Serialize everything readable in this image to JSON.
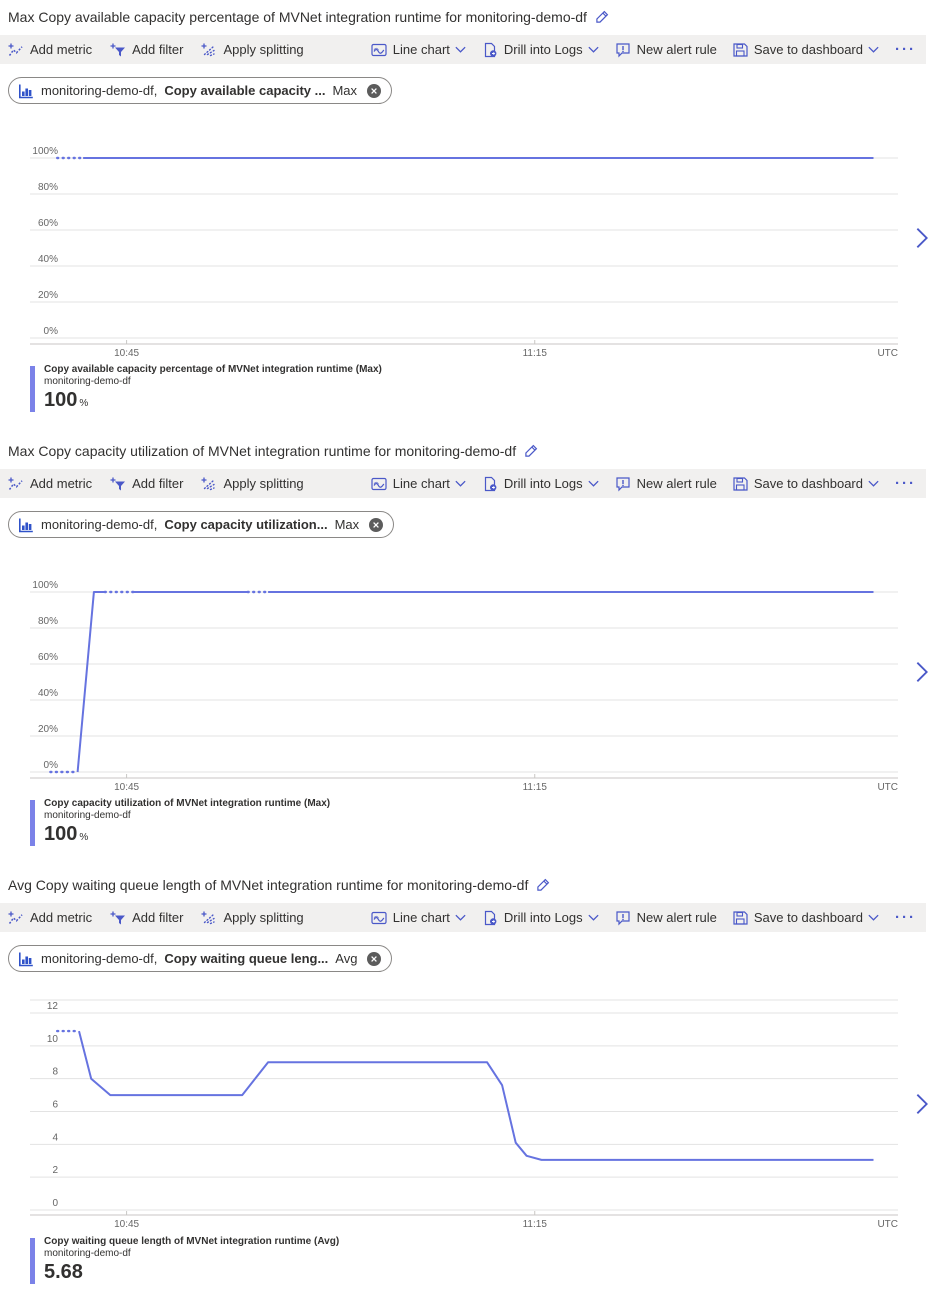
{
  "colors": {
    "accent": "#4a58c8",
    "line": "#6673e0",
    "legend_bar": "#7b82e8",
    "toolbar_bg": "#f1f0ef",
    "grid": "#e3e3e3",
    "axis": "#c8c6c4",
    "text": "#323130",
    "muted": "#666666",
    "pill_icon": "#2f52c9",
    "close_bg": "#5c5c5c"
  },
  "icons": {
    "edit-icon": "pencil",
    "add-metric-icon": "zigzag-plus",
    "add-filter-icon": "funnel-plus",
    "apply-splitting-icon": "split-dots-plus",
    "line-chart-icon": "framed-wave",
    "drill-into-logs-icon": "document-gear",
    "new-alert-rule-icon": "speech-bubble-exclamation",
    "save-to-dashboard-icon": "floppy-disk",
    "chevron-down-icon": "∨",
    "more-icon": "···",
    "metric-chart-icon": "bar-chart",
    "remove-metric-icon": "⊗",
    "chevron-right-icon": "›"
  },
  "toolbar": {
    "add_metric": "Add metric",
    "add_filter": "Add filter",
    "apply_splitting": "Apply splitting",
    "line_chart": "Line chart",
    "drill_into_logs": "Drill into Logs",
    "new_alert_rule": "New alert rule",
    "save_to_dashboard": "Save to dashboard",
    "more": "···"
  },
  "panels": [
    {
      "title": "Max Copy available capacity percentage of MVNet integration runtime for monitoring-demo-df",
      "pill": {
        "resource": "monitoring-demo-df,",
        "metric": "Copy available capacity ...",
        "aggregation": "Max"
      },
      "legend": {
        "name": "Copy available capacity percentage of MVNet integration runtime (Max)",
        "resource": "monitoring-demo-df",
        "value": "100",
        "unit": "%"
      }
    },
    {
      "title": "Max Copy capacity utilization of MVNet integration runtime for monitoring-demo-df",
      "pill": {
        "resource": "monitoring-demo-df,",
        "metric": "Copy capacity utilization...",
        "aggregation": "Max"
      },
      "legend": {
        "name": "Copy capacity utilization of MVNet integration runtime (Max)",
        "resource": "monitoring-demo-df",
        "value": "100",
        "unit": "%"
      }
    },
    {
      "title": "Avg Copy waiting queue length of MVNet integration runtime for monitoring-demo-df",
      "pill": {
        "resource": "monitoring-demo-df,",
        "metric": "Copy waiting queue leng...",
        "aggregation": "Avg"
      },
      "legend": {
        "name": "Copy waiting queue length of MVNet integration runtime (Avg)",
        "resource": "monitoring-demo-df",
        "value": "5.68",
        "unit": ""
      }
    }
  ],
  "chart_data": [
    {
      "type": "line",
      "title": "Max Copy available capacity percentage of MVNet integration runtime for monitoring-demo-df",
      "x_domain": [
        37.9,
        101.7
      ],
      "x_unit": "minutes after 10:00 UTC",
      "xticks": [
        {
          "t": 45,
          "label": "10:45"
        },
        {
          "t": 75,
          "label": "11:15"
        }
      ],
      "x_right_label": "UTC",
      "ylim": [
        0,
        100
      ],
      "yticks": [
        0,
        20,
        40,
        60,
        80,
        100
      ],
      "y_suffix": "%",
      "grid": true,
      "legend_position": "bottom-left",
      "series": [
        {
          "name": "Copy available capacity percentage of MVNet integration runtime (Max)",
          "resource": "monitoring-demo-df",
          "aggregation": "Max",
          "color": "#6673e0",
          "points": [
            [
              39.9,
              100
            ],
            [
              99.9,
              100
            ]
          ],
          "dotted_ranges": [
            [
              39.9,
              41.8
            ]
          ]
        }
      ]
    },
    {
      "type": "line",
      "title": "Max Copy capacity utilization of MVNet integration runtime for monitoring-demo-df",
      "x_domain": [
        37.9,
        101.7
      ],
      "x_unit": "minutes after 10:00 UTC",
      "xticks": [
        {
          "t": 45,
          "label": "10:45"
        },
        {
          "t": 75,
          "label": "11:15"
        }
      ],
      "x_right_label": "UTC",
      "ylim": [
        0,
        100
      ],
      "yticks": [
        0,
        20,
        40,
        60,
        80,
        100
      ],
      "y_suffix": "%",
      "grid": true,
      "legend_position": "bottom-left",
      "series": [
        {
          "name": "Copy capacity utilization of MVNet integration runtime (Max)",
          "resource": "monitoring-demo-df",
          "aggregation": "Max",
          "color": "#6673e0",
          "points": [
            [
              39.4,
              0
            ],
            [
              41.4,
              0
            ],
            [
              42.6,
              100
            ],
            [
              99.9,
              100
            ]
          ],
          "dotted_ranges": [
            [
              39.4,
              41.4
            ],
            [
              43.4,
              45.5
            ],
            [
              53.9,
              55.4
            ]
          ]
        }
      ]
    },
    {
      "type": "line",
      "title": "Avg Copy waiting queue length of MVNet integration runtime for monitoring-demo-df",
      "x_domain": [
        37.9,
        101.7
      ],
      "x_unit": "minutes after 10:00 UTC",
      "xticks": [
        {
          "t": 45,
          "label": "10:45"
        },
        {
          "t": 75,
          "label": "11:15"
        }
      ],
      "x_right_label": "UTC",
      "ylim": [
        0,
        12
      ],
      "yticks": [
        0,
        2,
        4,
        6,
        8,
        10,
        12
      ],
      "y_suffix": "",
      "grid": true,
      "legend_position": "bottom-left",
      "series": [
        {
          "name": "Copy waiting queue length of MVNet integration runtime (Avg)",
          "resource": "monitoring-demo-df",
          "aggregation": "Avg",
          "color": "#6673e0",
          "points": [
            [
              39.9,
              10.9
            ],
            [
              41.5,
              10.9
            ],
            [
              42.4,
              8
            ],
            [
              43.8,
              7
            ],
            [
              53.5,
              7
            ],
            [
              55.4,
              9
            ],
            [
              71.5,
              9
            ],
            [
              72.6,
              7.6
            ],
            [
              73.6,
              4.1
            ],
            [
              74.4,
              3.3
            ],
            [
              75.5,
              3.05
            ],
            [
              99.9,
              3.05
            ]
          ],
          "dotted_ranges": [
            [
              39.9,
              41.5
            ]
          ]
        }
      ]
    }
  ]
}
